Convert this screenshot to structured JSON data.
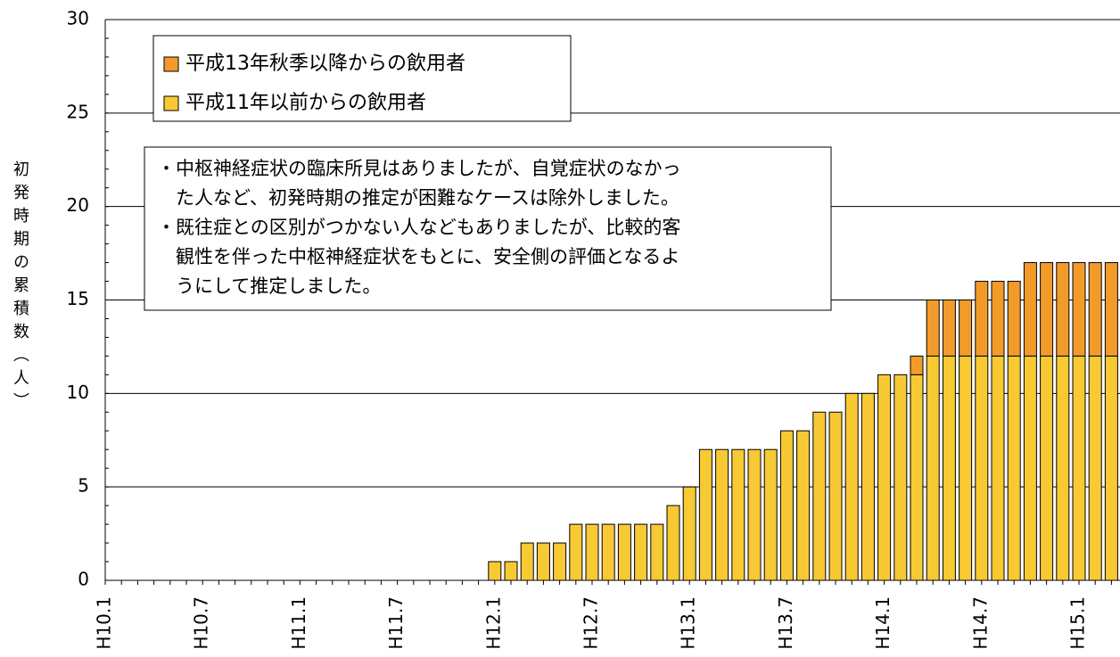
{
  "chart_data": {
    "type": "bar",
    "stacked": true,
    "y_label": "初発時期の累積数（人）",
    "categories": [
      "H10.1",
      null,
      null,
      null,
      null,
      null,
      "H10.7",
      null,
      null,
      null,
      null,
      null,
      "H11.1",
      null,
      null,
      null,
      null,
      null,
      "H11.7",
      null,
      null,
      null,
      null,
      null,
      "H12.1",
      null,
      null,
      null,
      null,
      null,
      "H12.7",
      null,
      null,
      null,
      null,
      null,
      "H13.1",
      null,
      null,
      null,
      null,
      null,
      "H13.7",
      null,
      null,
      null,
      null,
      null,
      "H14.1",
      null,
      null,
      null,
      null,
      null,
      "H14.7",
      null,
      null,
      null,
      null,
      null,
      "H15.1",
      null,
      null
    ],
    "series": [
      {
        "name": "平成11年以前からの飲用者",
        "color": "#f7c933",
        "values": [
          0,
          0,
          0,
          0,
          0,
          0,
          0,
          0,
          0,
          0,
          0,
          0,
          0,
          0,
          0,
          0,
          0,
          0,
          0,
          0,
          0,
          0,
          0,
          0,
          1,
          1,
          2,
          2,
          2,
          3,
          3,
          3,
          3,
          3,
          3,
          4,
          5,
          7,
          7,
          7,
          7,
          7,
          8,
          8,
          9,
          9,
          10,
          10,
          11,
          11,
          11,
          12,
          12,
          12,
          12,
          12,
          12,
          12,
          12,
          12,
          12,
          12,
          12
        ]
      },
      {
        "name": "平成13年秋季以降からの飲用者",
        "color": "#f29b2a",
        "values": [
          0,
          0,
          0,
          0,
          0,
          0,
          0,
          0,
          0,
          0,
          0,
          0,
          0,
          0,
          0,
          0,
          0,
          0,
          0,
          0,
          0,
          0,
          0,
          0,
          0,
          0,
          0,
          0,
          0,
          0,
          0,
          0,
          0,
          0,
          0,
          0,
          0,
          0,
          0,
          0,
          0,
          0,
          0,
          0,
          0,
          0,
          0,
          0,
          0,
          0,
          1,
          3,
          3,
          3,
          4,
          4,
          4,
          5,
          5,
          5,
          5,
          5,
          5
        ]
      }
    ],
    "ylim": [
      0,
      30
    ],
    "yticks": [
      0,
      5,
      10,
      15,
      20,
      25,
      30
    ],
    "grid": true,
    "annotation": [
      "・中枢神経症状の臨床所見はありましたが、自覚症状のなかっ",
      "　た人など、初発時期の推定が困難なケースは除外しました。",
      "・既往症との区別がつかない人などもありましたが、比較的客",
      "　観性を伴った中枢神経症状をもとに、安全側の評価となるよ",
      "　うにして推定しました。"
    ]
  }
}
